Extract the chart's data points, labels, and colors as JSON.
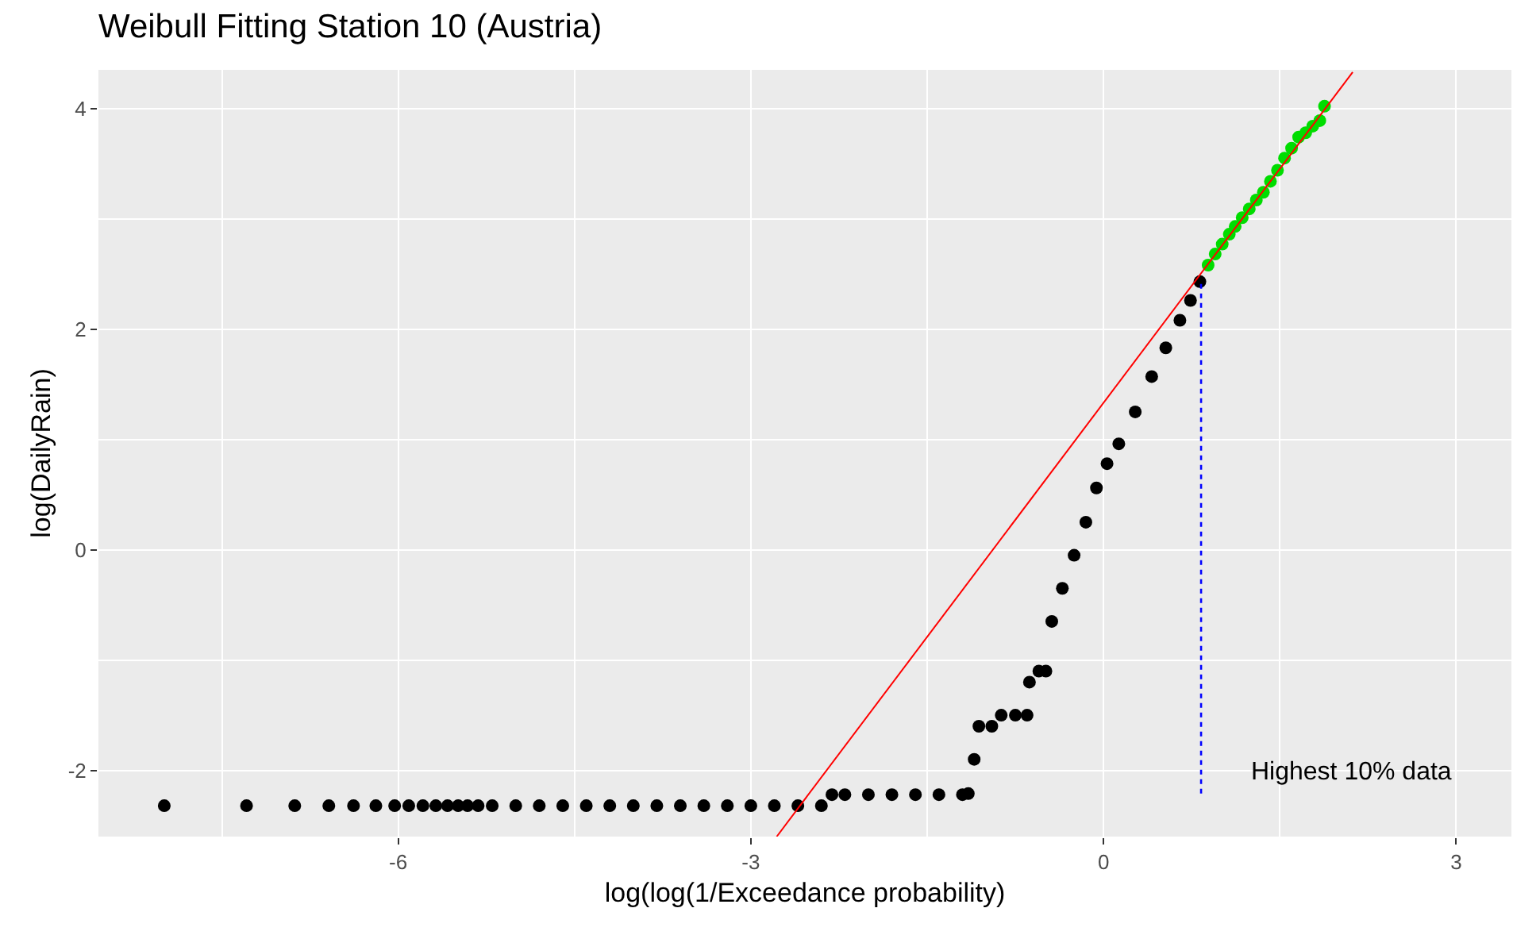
{
  "chart_data": {
    "type": "scatter",
    "title": "Weibull Fitting Station 10 (Austria)",
    "xlabel": "log(log(1/Exceedance probability)",
    "ylabel": "log(DailyRain)",
    "xlim": [
      -8.55,
      3.47
    ],
    "ylim": [
      -2.6,
      4.35
    ],
    "xticks": [
      -6,
      -3,
      0,
      3
    ],
    "yticks": [
      -2,
      0,
      2,
      4
    ],
    "grid": true,
    "marker": "circle",
    "series": [
      {
        "color": "#000000",
        "x": [
          -7.99,
          -7.29,
          -6.88,
          -6.59,
          -6.38,
          -6.19,
          -6.03,
          -5.91,
          -5.79,
          -5.68,
          -5.58,
          -5.49,
          -5.41,
          -5.32,
          -5.2,
          -5.0,
          -4.8,
          -4.6,
          -4.4,
          -4.2,
          -4.0,
          -3.8,
          -3.6,
          -3.4,
          -3.2,
          -3.0,
          -2.8,
          -2.6,
          -2.4,
          -2.31,
          -2.2,
          -2.0,
          -1.8,
          -1.6,
          -1.4,
          -1.2,
          -1.15,
          -1.1,
          -1.06,
          -0.95,
          -0.87,
          -0.75,
          -0.65,
          -0.63,
          -0.55,
          -0.49,
          -0.44,
          -0.35,
          -0.25,
          -0.15,
          -0.06,
          0.03,
          0.13,
          0.27,
          0.41,
          0.53,
          0.65,
          0.74,
          0.82
        ],
        "values": [
          -2.32,
          -2.32,
          -2.32,
          -2.32,
          -2.32,
          -2.32,
          -2.32,
          -2.32,
          -2.32,
          -2.32,
          -2.32,
          -2.32,
          -2.32,
          -2.32,
          -2.32,
          -2.32,
          -2.32,
          -2.32,
          -2.32,
          -2.32,
          -2.32,
          -2.32,
          -2.32,
          -2.32,
          -2.32,
          -2.32,
          -2.32,
          -2.32,
          -2.32,
          -2.22,
          -2.22,
          -2.22,
          -2.22,
          -2.22,
          -2.22,
          -2.22,
          -2.21,
          -1.9,
          -1.6,
          -1.6,
          -1.5,
          -1.5,
          -1.5,
          -1.2,
          -1.1,
          -1.1,
          -0.65,
          -0.35,
          -0.05,
          0.25,
          0.56,
          0.78,
          0.96,
          1.25,
          1.57,
          1.83,
          2.08,
          2.26,
          2.43
        ]
      },
      {
        "color": "#00dd00",
        "x": [
          0.89,
          0.95,
          1.01,
          1.07,
          1.12,
          1.18,
          1.24,
          1.3,
          1.36,
          1.42,
          1.48,
          1.54,
          1.6,
          1.66,
          1.72,
          1.78,
          1.84,
          1.88
        ],
        "values": [
          2.58,
          2.68,
          2.77,
          2.86,
          2.93,
          3.01,
          3.09,
          3.17,
          3.24,
          3.34,
          3.44,
          3.55,
          3.64,
          3.74,
          3.78,
          3.84,
          3.89,
          4.02
        ]
      },
      {
        "type": "line",
        "color": "#ff0000",
        "marker": "none",
        "line_style": "solid",
        "x": [
          -2.78,
          2.12
        ],
        "values": [
          -2.6,
          4.33
        ]
      },
      {
        "type": "line",
        "color": "#0000ff",
        "marker": "none",
        "line_style": "dotted",
        "x": [
          0.83,
          0.83
        ],
        "values": [
          -2.21,
          2.43
        ]
      }
    ],
    "annotations": [
      "Highest 10% data"
    ]
  }
}
